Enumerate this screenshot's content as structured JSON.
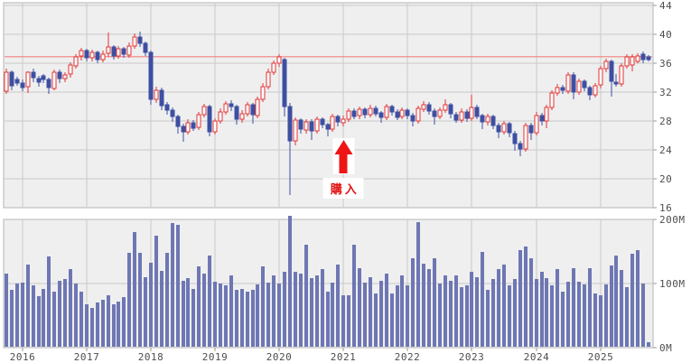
{
  "chart_data": {
    "type": "candlestick",
    "subtype": "candlestick-with-volume",
    "period": "monthly",
    "title": "",
    "xlabel": "",
    "ylabel": "",
    "price_axis_ticks": [
      44,
      40,
      36,
      32,
      28,
      24,
      20,
      16
    ],
    "price_range": [
      16,
      44
    ],
    "volume_axis_ticks": [
      {
        "label": "200M",
        "value": 200
      },
      {
        "label": "100M",
        "value": 100
      },
      {
        "label": "0M",
        "value": 0
      }
    ],
    "volume_range_millions": [
      0,
      200
    ],
    "year_ticks": {
      "labels": [
        "2016",
        "2017",
        "2018",
        "2019",
        "2020",
        "2021",
        "2022",
        "2023",
        "2024",
        "2025"
      ],
      "month_indices": [
        3,
        15,
        27,
        39,
        51,
        63,
        75,
        87,
        99,
        111
      ]
    },
    "reference_line_price": 36.9,
    "annotation": {
      "label": "購入",
      "type": "buy-arrow",
      "month_index": 63
    },
    "ohlcv_legend": [
      "open",
      "high",
      "low",
      "close",
      "volume_millions"
    ],
    "ohlcv": [
      [
        32.2,
        35.2,
        31.8,
        34.8,
        116
      ],
      [
        34.8,
        35.0,
        32.2,
        32.9,
        90
      ],
      [
        33.8,
        34.1,
        32.9,
        33.3,
        100
      ],
      [
        33.3,
        33.7,
        32.1,
        32.7,
        102
      ],
      [
        32.7,
        34.9,
        31.9,
        34.7,
        130
      ],
      [
        34.7,
        35.2,
        33.4,
        33.9,
        97
      ],
      [
        33.9,
        34.3,
        32.8,
        33.4,
        80
      ],
      [
        34.2,
        34.5,
        33.2,
        33.7,
        92
      ],
      [
        33.7,
        34.0,
        31.8,
        32.6,
        142
      ],
      [
        32.6,
        35.1,
        32.2,
        34.8,
        87
      ],
      [
        34.8,
        35.1,
        33.3,
        33.9,
        104
      ],
      [
        33.9,
        34.8,
        33.4,
        34.4,
        107
      ],
      [
        34.4,
        36.1,
        34.0,
        35.7,
        122
      ],
      [
        35.7,
        37.3,
        35.3,
        36.9,
        100
      ],
      [
        36.9,
        38.1,
        36.4,
        37.7,
        87
      ],
      [
        37.7,
        38.0,
        36.2,
        36.7,
        67
      ],
      [
        36.7,
        37.9,
        36.3,
        37.5,
        62
      ],
      [
        37.5,
        37.8,
        36.0,
        36.5,
        70
      ],
      [
        36.5,
        37.7,
        36.1,
        37.3,
        75
      ],
      [
        37.3,
        40.2,
        36.9,
        38.2,
        82
      ],
      [
        38.2,
        38.5,
        36.5,
        37.0,
        67
      ],
      [
        37.0,
        38.4,
        36.6,
        38.0,
        72
      ],
      [
        38.0,
        38.3,
        36.7,
        37.2,
        79
      ],
      [
        37.2,
        38.9,
        36.8,
        38.4,
        148
      ],
      [
        38.4,
        40.1,
        38.0,
        39.6,
        180
      ],
      [
        39.6,
        40.4,
        38.2,
        38.7,
        148
      ],
      [
        38.7,
        39.0,
        37.0,
        37.5,
        110
      ],
      [
        37.5,
        37.7,
        30.3,
        31.0,
        132
      ],
      [
        31.0,
        32.8,
        30.5,
        32.3,
        175
      ],
      [
        32.3,
        32.6,
        29.5,
        30.2,
        120
      ],
      [
        30.2,
        30.6,
        28.9,
        29.5,
        148
      ],
      [
        29.5,
        29.9,
        27.9,
        28.6,
        194
      ],
      [
        28.6,
        28.9,
        26.3,
        27.2,
        191
      ],
      [
        27.2,
        27.6,
        25.1,
        26.5,
        104
      ],
      [
        26.5,
        28.2,
        26.1,
        27.8,
        109
      ],
      [
        27.8,
        28.1,
        26.6,
        27.1,
        92
      ],
      [
        27.1,
        29.3,
        26.8,
        28.9,
        127
      ],
      [
        28.9,
        30.4,
        28.5,
        30.0,
        116
      ],
      [
        30.0,
        30.3,
        25.9,
        26.5,
        144
      ],
      [
        26.5,
        28.4,
        26.1,
        28.0,
        103
      ],
      [
        28.0,
        29.7,
        27.6,
        29.3,
        100
      ],
      [
        29.3,
        30.8,
        28.9,
        30.4,
        97
      ],
      [
        30.4,
        30.9,
        29.4,
        30.0,
        112
      ],
      [
        30.0,
        30.3,
        27.5,
        28.2,
        90
      ],
      [
        28.2,
        29.5,
        27.8,
        29.0,
        92
      ],
      [
        29.0,
        30.6,
        28.6,
        30.2,
        87
      ],
      [
        30.2,
        30.5,
        27.6,
        28.8,
        90
      ],
      [
        28.8,
        31.4,
        28.4,
        31.0,
        99
      ],
      [
        31.0,
        33.2,
        30.6,
        32.8,
        127
      ],
      [
        32.8,
        35.2,
        32.4,
        34.8,
        102
      ],
      [
        34.8,
        36.4,
        34.4,
        36.0,
        112
      ],
      [
        36.0,
        37.2,
        35.5,
        36.9,
        100
      ],
      [
        36.5,
        36.8,
        28.6,
        30.0,
        119
      ],
      [
        30.0,
        30.5,
        17.8,
        25.2,
        206
      ],
      [
        25.2,
        28.5,
        24.6,
        28.1,
        119
      ],
      [
        28.1,
        28.4,
        26.2,
        26.8,
        116
      ],
      [
        26.8,
        28.3,
        26.3,
        27.9,
        161
      ],
      [
        27.9,
        28.2,
        25.4,
        26.6,
        109
      ],
      [
        26.6,
        28.6,
        26.2,
        28.2,
        112
      ],
      [
        28.2,
        28.5,
        27.0,
        27.5,
        122
      ],
      [
        27.5,
        27.8,
        25.9,
        26.9,
        87
      ],
      [
        26.9,
        29.0,
        26.5,
        28.6,
        102
      ],
      [
        28.6,
        28.9,
        27.3,
        27.8,
        130
      ],
      [
        27.8,
        28.8,
        27.2,
        28.3,
        82
      ],
      [
        28.3,
        29.8,
        27.9,
        29.4,
        82
      ],
      [
        29.4,
        29.7,
        28.2,
        28.7,
        161
      ],
      [
        28.7,
        30.0,
        28.3,
        29.6,
        124
      ],
      [
        29.6,
        29.9,
        28.4,
        28.9,
        101
      ],
      [
        28.9,
        30.2,
        28.5,
        29.8,
        110
      ],
      [
        29.8,
        30.1,
        28.6,
        29.1,
        84
      ],
      [
        29.1,
        29.4,
        27.7,
        28.5,
        104
      ],
      [
        28.5,
        30.4,
        28.1,
        30.0,
        115
      ],
      [
        30.0,
        30.3,
        28.8,
        29.3,
        84
      ],
      [
        29.3,
        29.6,
        28.1,
        28.6,
        97
      ],
      [
        28.6,
        29.9,
        28.2,
        29.5,
        112
      ],
      [
        29.5,
        29.8,
        28.3,
        28.8,
        97
      ],
      [
        28.8,
        29.1,
        27.2,
        28.0,
        140
      ],
      [
        28.0,
        30.1,
        27.6,
        29.7,
        196
      ],
      [
        29.7,
        30.8,
        29.2,
        30.3,
        131
      ],
      [
        30.3,
        30.6,
        28.9,
        29.4,
        122
      ],
      [
        29.4,
        29.7,
        27.5,
        28.6,
        140
      ],
      [
        28.6,
        29.9,
        28.2,
        29.5,
        100
      ],
      [
        29.5,
        31.0,
        29.1,
        30.2,
        112
      ],
      [
        30.2,
        30.5,
        28.4,
        28.9,
        104
      ],
      [
        28.9,
        29.2,
        27.7,
        28.2,
        112
      ],
      [
        28.2,
        29.7,
        27.8,
        29.3,
        94
      ],
      [
        29.3,
        29.6,
        27.9,
        28.4,
        97
      ],
      [
        28.4,
        31.6,
        28.0,
        29.9,
        119
      ],
      [
        29.9,
        30.2,
        28.2,
        28.7,
        110
      ],
      [
        28.7,
        29.0,
        26.9,
        27.8,
        149
      ],
      [
        27.8,
        29.0,
        27.4,
        28.6,
        90
      ],
      [
        28.6,
        28.9,
        26.9,
        27.4,
        107
      ],
      [
        27.4,
        27.7,
        25.6,
        26.5,
        122
      ],
      [
        26.5,
        28.0,
        26.1,
        27.6,
        130
      ],
      [
        27.6,
        27.9,
        25.8,
        26.3,
        97
      ],
      [
        26.3,
        26.6,
        23.9,
        24.9,
        107
      ],
      [
        24.9,
        25.3,
        23.1,
        24.2,
        152
      ],
      [
        24.2,
        27.8,
        23.8,
        27.4,
        158
      ],
      [
        27.4,
        27.7,
        25.4,
        26.4,
        140
      ],
      [
        26.4,
        29.2,
        26.0,
        28.8,
        107
      ],
      [
        28.8,
        29.1,
        27.4,
        28.0,
        118
      ],
      [
        28.0,
        30.3,
        27.0,
        29.9,
        109
      ],
      [
        29.9,
        32.3,
        29.5,
        31.9,
        97
      ],
      [
        31.9,
        33.1,
        31.5,
        32.6,
        122
      ],
      [
        32.6,
        33.0,
        31.7,
        32.2,
        87
      ],
      [
        32.2,
        34.8,
        31.8,
        34.4,
        103
      ],
      [
        34.4,
        34.7,
        31.0,
        32.0,
        124
      ],
      [
        32.0,
        33.9,
        31.6,
        33.5,
        103
      ],
      [
        33.5,
        33.8,
        32.1,
        32.6,
        99
      ],
      [
        32.6,
        32.9,
        30.9,
        31.6,
        124
      ],
      [
        31.6,
        33.3,
        31.2,
        32.9,
        84
      ],
      [
        32.9,
        35.6,
        32.5,
        35.2,
        81
      ],
      [
        35.2,
        36.6,
        34.8,
        36.2,
        99
      ],
      [
        36.2,
        36.5,
        31.4,
        33.4,
        128
      ],
      [
        33.4,
        34.5,
        32.7,
        33.1,
        143
      ],
      [
        33.1,
        36.0,
        32.7,
        35.6,
        121
      ],
      [
        35.6,
        37.3,
        35.2,
        36.9,
        94
      ],
      [
        35.8,
        37.2,
        34.9,
        36.9,
        146
      ],
      [
        36.2,
        37.4,
        36.0,
        37.0,
        152
      ],
      [
        37.2,
        37.6,
        36.0,
        36.4,
        100
      ],
      [
        36.9,
        37.1,
        36.2,
        36.5,
        9
      ]
    ],
    "colors": {
      "up_color": "#e23333",
      "up_fill": "#ffffff",
      "down_color": "#3d4fa2",
      "volume_color": "#6e77b4",
      "panel_bg": "#efefef",
      "panel_border": "#b5b5b5",
      "grid_color": "#c9c9c9",
      "tick_color": "#999999",
      "axis_text_color": "#4d4d4d",
      "reference_line_color": "#f28080",
      "arrow_color": "#ed1515",
      "annotation_text_color": "#e01212",
      "annotation_bg": "#ffffff"
    },
    "layout": {
      "legend": "off",
      "grid": "on",
      "price_axis_side": "right",
      "annotation_position": "below-2021-candle"
    }
  }
}
